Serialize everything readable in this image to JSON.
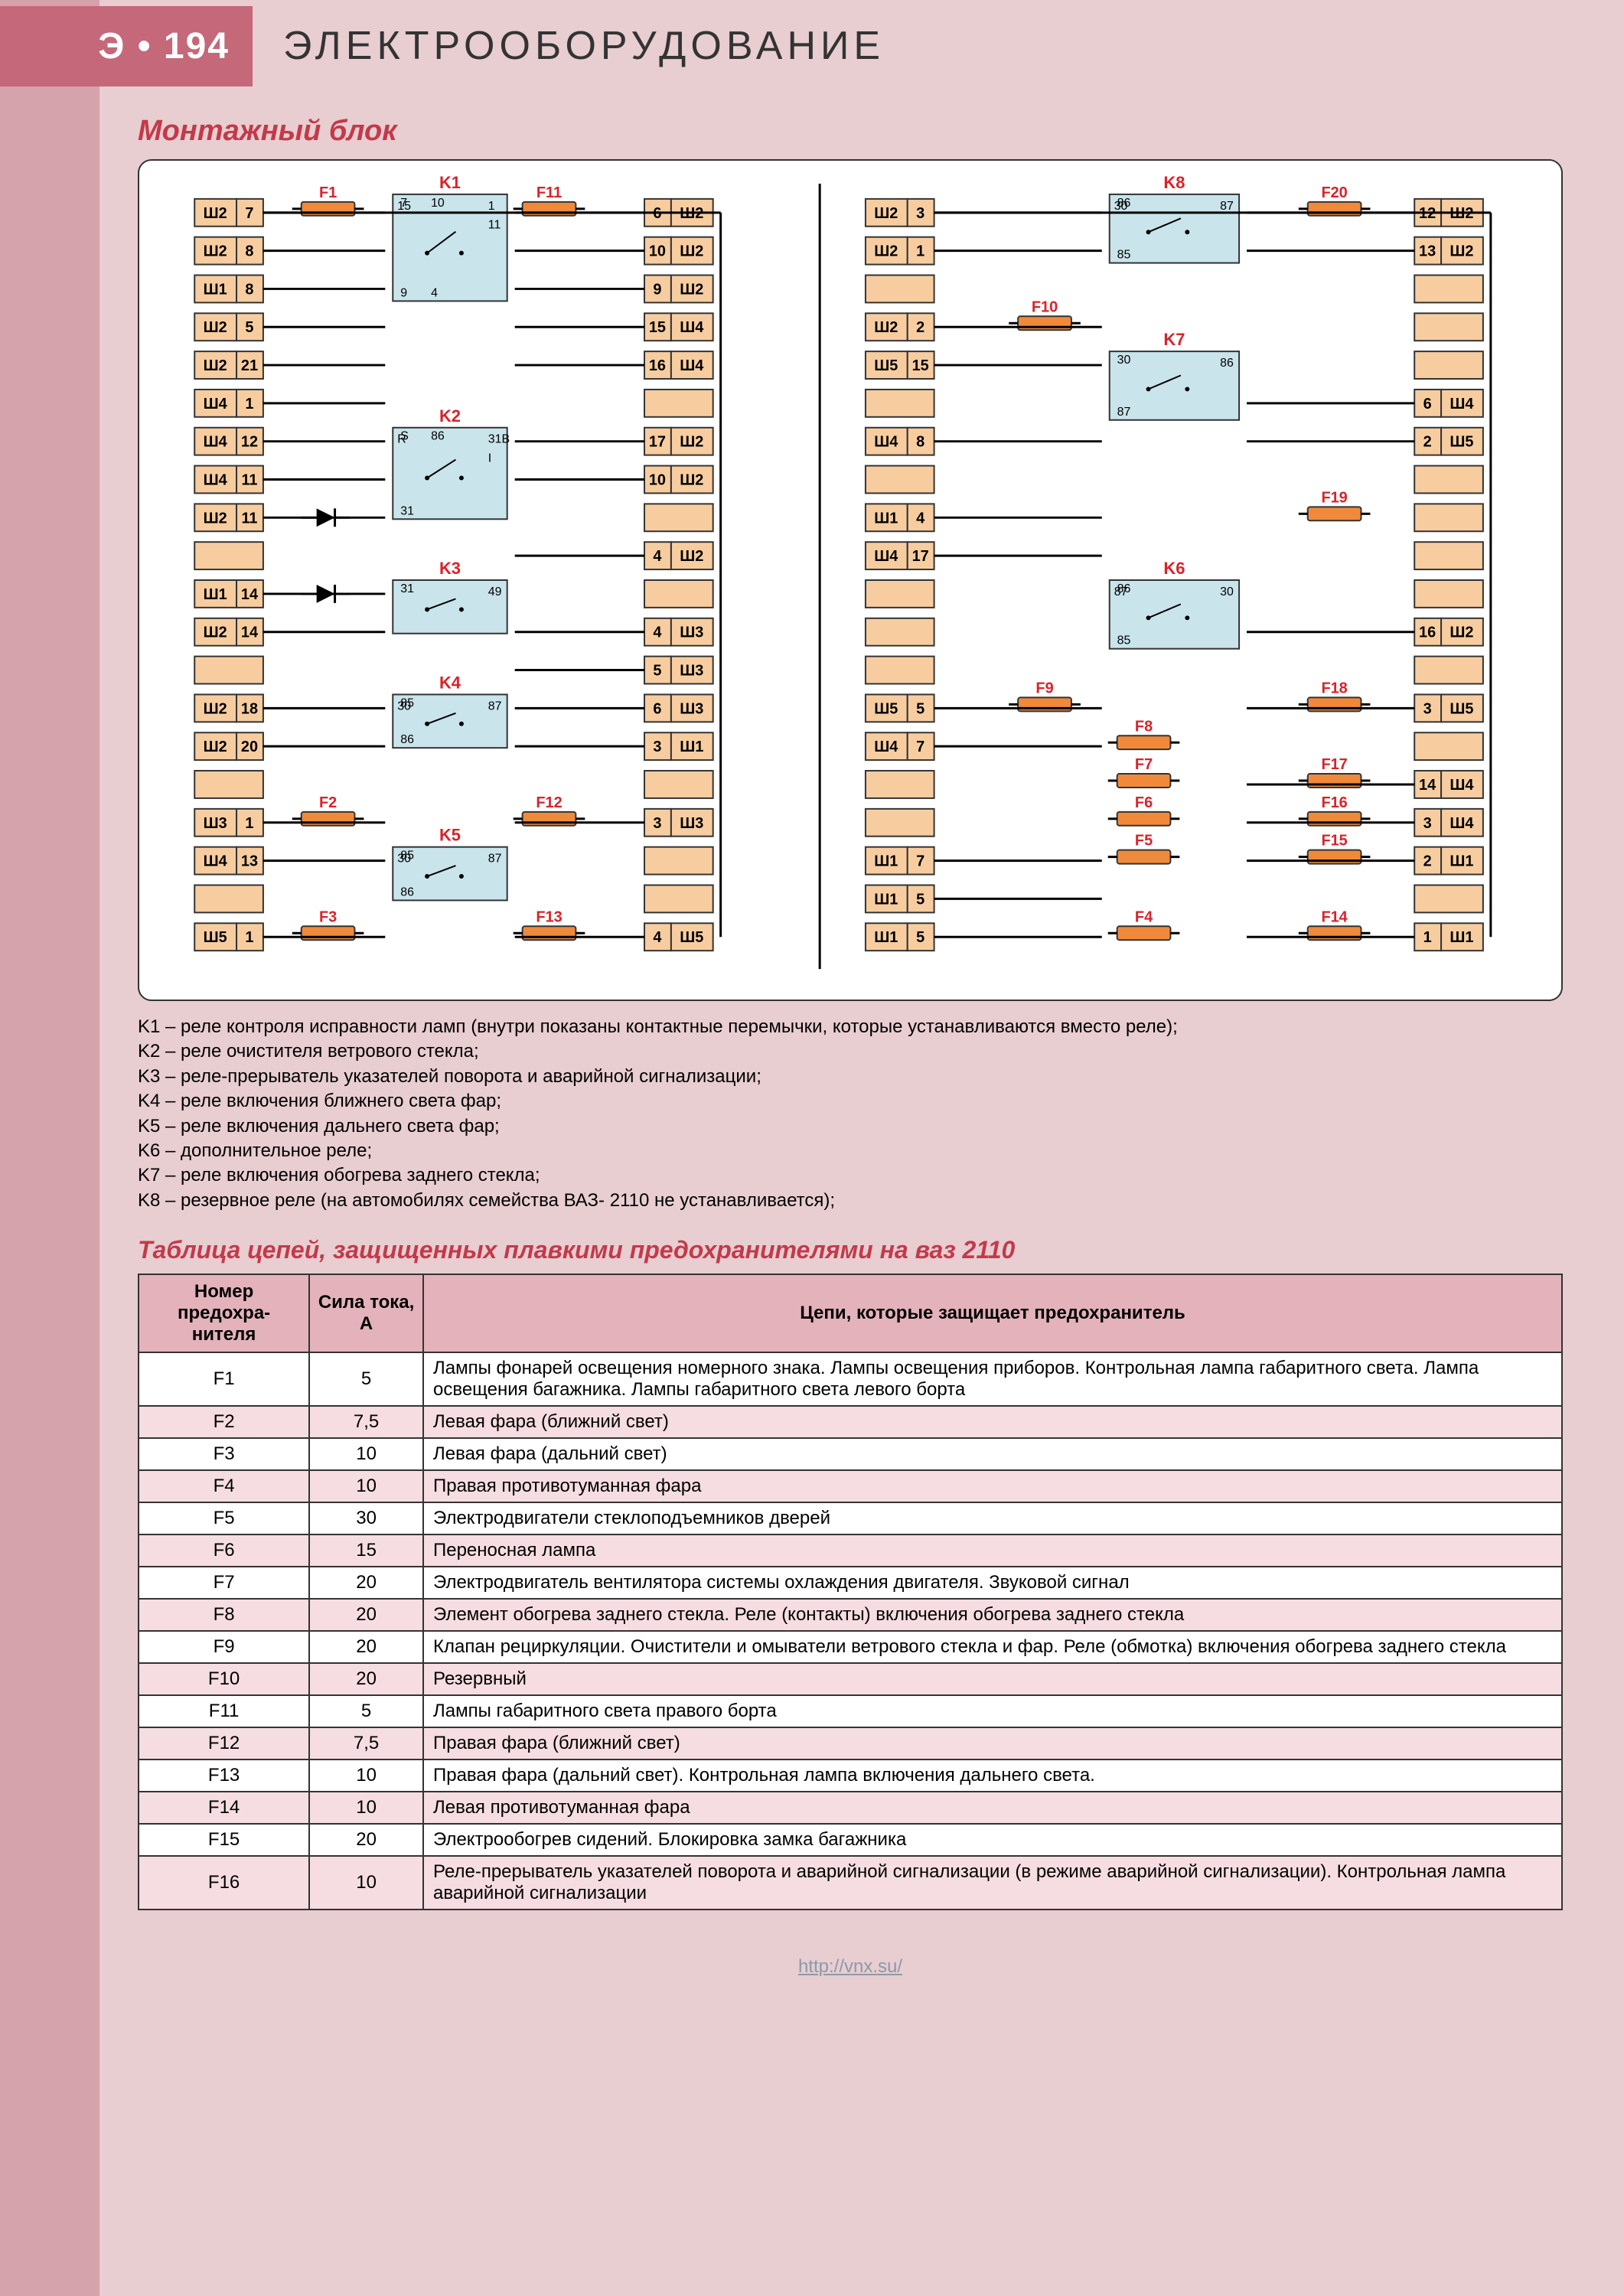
{
  "header": {
    "badge": "Э • 194",
    "title": "ЭЛЕКТРООБОРУДОВАНИЕ"
  },
  "section_title": "Монтажный блок",
  "diagram": {
    "colors": {
      "terminal_fill": "#f7cda0",
      "terminal_stroke": "#333333",
      "relay_fill": "#c9e4ea",
      "relay_stroke": "#333333",
      "fuse_fill": "#f08a3a",
      "fuse_stroke": "#333333",
      "wire": "#000000",
      "label_red": "#d8232a",
      "label_black": "#000000"
    },
    "left_terminals_colA": [
      {
        "bus": "Ш2",
        "pin": "7"
      },
      {
        "bus": "Ш2",
        "pin": "8"
      },
      {
        "bus": "Ш1",
        "pin": "8"
      },
      {
        "bus": "Ш2",
        "pin": "5"
      },
      {
        "bus": "Ш2",
        "pin": "21"
      },
      {
        "bus": "Ш4",
        "pin": "1"
      },
      {
        "bus": "Ш4",
        "pin": "12"
      },
      {
        "bus": "Ш4",
        "pin": "11"
      },
      {
        "bus": "Ш2",
        "pin": "11"
      },
      {
        "bus": "",
        "pin": ""
      },
      {
        "bus": "Ш1",
        "pin": "14"
      },
      {
        "bus": "Ш2",
        "pin": "14"
      },
      {
        "bus": "",
        "pin": ""
      },
      {
        "bus": "Ш2",
        "pin": "18"
      },
      {
        "bus": "Ш2",
        "pin": "20"
      },
      {
        "bus": "",
        "pin": ""
      },
      {
        "bus": "Ш3",
        "pin": "1"
      },
      {
        "bus": "Ш4",
        "pin": "13"
      },
      {
        "bus": "",
        "pin": ""
      },
      {
        "bus": "Ш5",
        "pin": "1"
      }
    ],
    "left_terminals_colB": [
      {
        "bus": "Ш2",
        "pin": "6"
      },
      {
        "bus": "Ш2",
        "pin": "10"
      },
      {
        "bus": "Ш2",
        "pin": "9"
      },
      {
        "bus": "Ш4",
        "pin": "15"
      },
      {
        "bus": "Ш4",
        "pin": "16"
      },
      {
        "bus": "",
        "pin": ""
      },
      {
        "bus": "Ш2",
        "pin": "17"
      },
      {
        "bus": "Ш2",
        "pin": "10"
      },
      {
        "bus": "",
        "pin": ""
      },
      {
        "bus": "Ш2",
        "pin": "4"
      },
      {
        "bus": "",
        "pin": ""
      },
      {
        "bus": "Ш3",
        "pin": "4"
      },
      {
        "bus": "Ш3",
        "pin": "5"
      },
      {
        "bus": "Ш3",
        "pin": "6"
      },
      {
        "bus": "Ш1",
        "pin": "3"
      },
      {
        "bus": "",
        "pin": ""
      },
      {
        "bus": "Ш3",
        "pin": "3"
      },
      {
        "bus": "",
        "pin": ""
      },
      {
        "bus": "",
        "pin": ""
      },
      {
        "bus": "Ш5",
        "pin": "4"
      }
    ],
    "right_terminals_colA": [
      {
        "bus": "Ш2",
        "pin": "3"
      },
      {
        "bus": "Ш2",
        "pin": "1"
      },
      {
        "bus": "",
        "pin": ""
      },
      {
        "bus": "Ш2",
        "pin": "2"
      },
      {
        "bus": "Ш5",
        "pin": "15"
      },
      {
        "bus": "",
        "pin": ""
      },
      {
        "bus": "Ш4",
        "pin": "8"
      },
      {
        "bus": "",
        "pin": ""
      },
      {
        "bus": "Ш1",
        "pin": "4"
      },
      {
        "bus": "Ш4",
        "pin": "17"
      },
      {
        "bus": "",
        "pin": ""
      },
      {
        "bus": "",
        "pin": ""
      },
      {
        "bus": "",
        "pin": ""
      },
      {
        "bus": "Ш5",
        "pin": "5"
      },
      {
        "bus": "Ш4",
        "pin": "7"
      },
      {
        "bus": "",
        "pin": ""
      },
      {
        "bus": "",
        "pin": ""
      },
      {
        "bus": "Ш1",
        "pin": "7"
      },
      {
        "bus": "Ш1",
        "pin": "5"
      },
      {
        "bus": "Ш1",
        "pin": "5"
      }
    ],
    "right_terminals_colB": [
      {
        "bus": "Ш2",
        "pin": "12"
      },
      {
        "bus": "Ш2",
        "pin": "13"
      },
      {
        "bus": "",
        "pin": ""
      },
      {
        "bus": "",
        "pin": ""
      },
      {
        "bus": "",
        "pin": ""
      },
      {
        "bus": "Ш4",
        "pin": "6"
      },
      {
        "bus": "Ш5",
        "pin": "2"
      },
      {
        "bus": "",
        "pin": ""
      },
      {
        "bus": "",
        "pin": ""
      },
      {
        "bus": "",
        "pin": ""
      },
      {
        "bus": "",
        "pin": ""
      },
      {
        "bus": "Ш2",
        "pin": "16"
      },
      {
        "bus": "",
        "pin": ""
      },
      {
        "bus": "Ш5",
        "pin": "3"
      },
      {
        "bus": "",
        "pin": ""
      },
      {
        "bus": "Ш4",
        "pin": "14"
      },
      {
        "bus": "Ш4",
        "pin": "3"
      },
      {
        "bus": "Ш1",
        "pin": "2"
      },
      {
        "bus": "",
        "pin": ""
      },
      {
        "bus": "Ш1",
        "pin": "1"
      }
    ],
    "relays": [
      {
        "name": "K1",
        "pins": [
          "7",
          "1",
          "9",
          "15",
          "10",
          "11",
          "4"
        ]
      },
      {
        "name": "K2",
        "pins": [
          "S",
          "31B",
          "31",
          "R",
          "86",
          "I"
        ]
      },
      {
        "name": "K3",
        "pins": [
          "31",
          "49"
        ]
      },
      {
        "name": "K4",
        "pins": [
          "85",
          "87",
          "86",
          "30"
        ]
      },
      {
        "name": "K5",
        "pins": [
          "85",
          "87",
          "86",
          "30"
        ]
      },
      {
        "name": "K6",
        "pins": [
          "86",
          "30",
          "85",
          "87"
        ]
      },
      {
        "name": "K7",
        "pins": [
          "30",
          "86",
          "87"
        ]
      },
      {
        "name": "K8",
        "pins": [
          "86",
          "87",
          "85",
          "30"
        ]
      }
    ],
    "fuses_left": [
      "F1",
      "F11",
      "F2",
      "F12",
      "F3",
      "F13"
    ],
    "fuses_right": [
      "F20",
      "F10",
      "F19",
      "F18",
      "F9",
      "F8",
      "F7",
      "F17",
      "F6",
      "F16",
      "F5",
      "F15",
      "F4",
      "F14"
    ]
  },
  "legend": [
    "K1 – реле контроля исправности ламп (внутри показаны контактные перемычки, которые устанавливаются вместо реле);",
    "K2 – реле очистителя ветрового стекла;",
    "K3 – реле-прерыватель указателей поворота и аварийной сигнализации;",
    "K4 – реле включения ближнего света фар;",
    "K5 – реле включения дальнего света фар;",
    "K6 – дополнительное реле;",
    "K7 – реле включения обогрева заднего стекла;",
    "K8 – резервное реле (на автомобилях семейства ВАЗ- 2110 не устанавливается);"
  ],
  "table_title": "Таблица цепей, защищенных плавкими предохранителями на ваз 2110",
  "table": {
    "headers": [
      "Номер предохра-нителя",
      "Сила тока, А",
      "Цепи, которые защищает предохранитель"
    ],
    "rows": [
      [
        "F1",
        "5",
        "Лампы фонарей освещения номерного знака. Лампы освещения приборов. Контрольная лампа габаритного света. Лампа освещения багажника. Лампы габаритного света левого борта"
      ],
      [
        "F2",
        "7,5",
        "Левая фара (ближний свет)"
      ],
      [
        "F3",
        "10",
        "Левая фара (дальний свет)"
      ],
      [
        "F4",
        "10",
        "Правая противотуманная фара"
      ],
      [
        "F5",
        "30",
        "Электродвигатели стеклоподъемников дверей"
      ],
      [
        "F6",
        "15",
        "Переносная лампа"
      ],
      [
        "F7",
        "20",
        "Электродвигатель вентилятора системы охлаждения двигателя. Звуковой сигнал"
      ],
      [
        "F8",
        "20",
        "Элемент обогрева заднего стекла. Реле (контакты) включения обогрева заднего стекла"
      ],
      [
        "F9",
        "20",
        "Клапан рециркуляции. Очистители и омыватели ветрового стекла и фар. Реле (обмотка) включения обогрева заднего стекла"
      ],
      [
        "F10",
        "20",
        "Резервный"
      ],
      [
        "F11",
        "5",
        "Лампы габаритного света правого борта"
      ],
      [
        "F12",
        "7,5",
        "Правая фара (ближний свет)"
      ],
      [
        "F13",
        "10",
        "Правая фара (дальний свет). Контрольная лампа включения дальнего света."
      ],
      [
        "F14",
        "10",
        "Левая противотуманная фара"
      ],
      [
        "F15",
        "20",
        "Электрообогрев сидений. Блокировка замка багажника"
      ],
      [
        "F16",
        "10",
        "Реле-прерыватель указателей поворота и аварийной сигнализации (в режиме аварийной сигнализации). Контрольная лампа аварийной сигнализации"
      ]
    ]
  },
  "footer": "http://vnx.su/"
}
